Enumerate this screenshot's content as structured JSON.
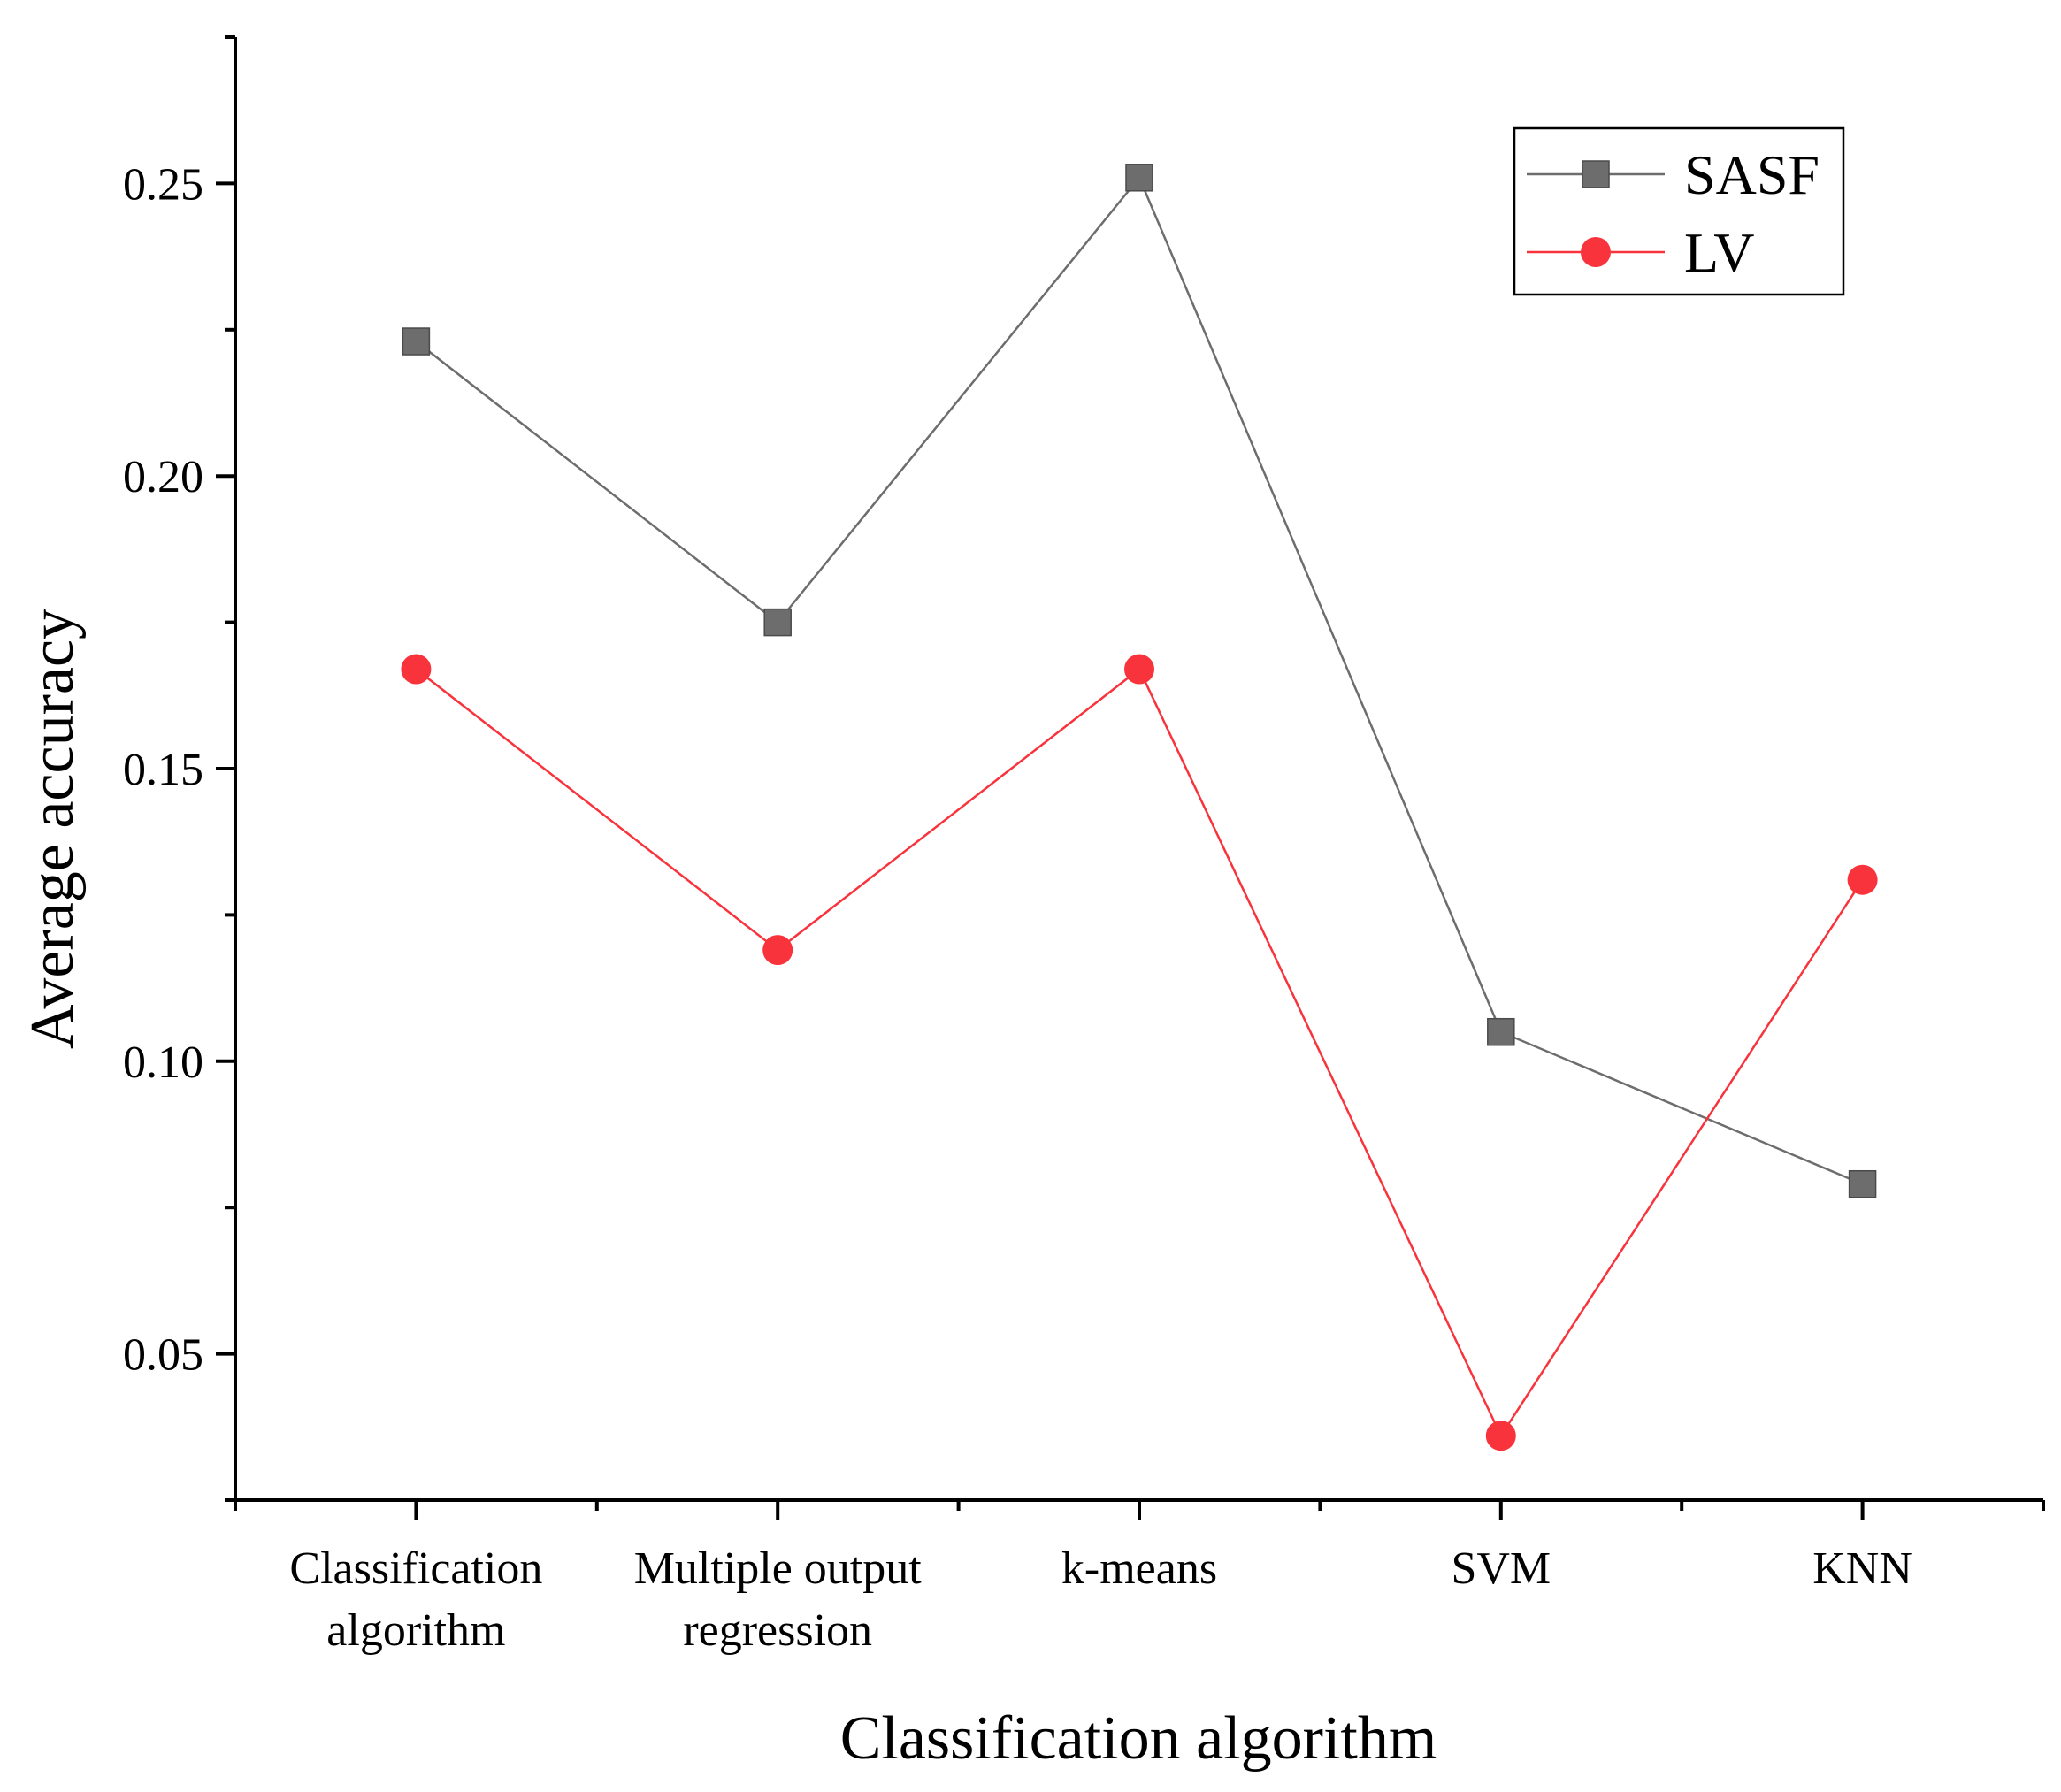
{
  "chart_data": {
    "type": "line",
    "xlabel": "Classification algorithm",
    "ylabel": "Average accuracy",
    "categories": [
      [
        "Classification",
        "algorithm"
      ],
      [
        "Multiple output",
        "regression"
      ],
      [
        "k-means"
      ],
      [
        "SVM"
      ],
      [
        "KNN"
      ]
    ],
    "yticks": [
      "0.05",
      "0.10",
      "0.15",
      "0.20",
      "0.25"
    ],
    "ylim": [
      0.025,
      0.275
    ],
    "grid": false,
    "legend_position": "top-right",
    "series": [
      {
        "name": "SASF",
        "marker": "square",
        "color": "#6d6d6d",
        "values": [
          0.223,
          0.175,
          0.251,
          0.105,
          0.079
        ]
      },
      {
        "name": "LV",
        "marker": "circle",
        "color": "#f8333b",
        "values": [
          0.167,
          0.119,
          0.167,
          0.036,
          0.131
        ]
      }
    ]
  }
}
